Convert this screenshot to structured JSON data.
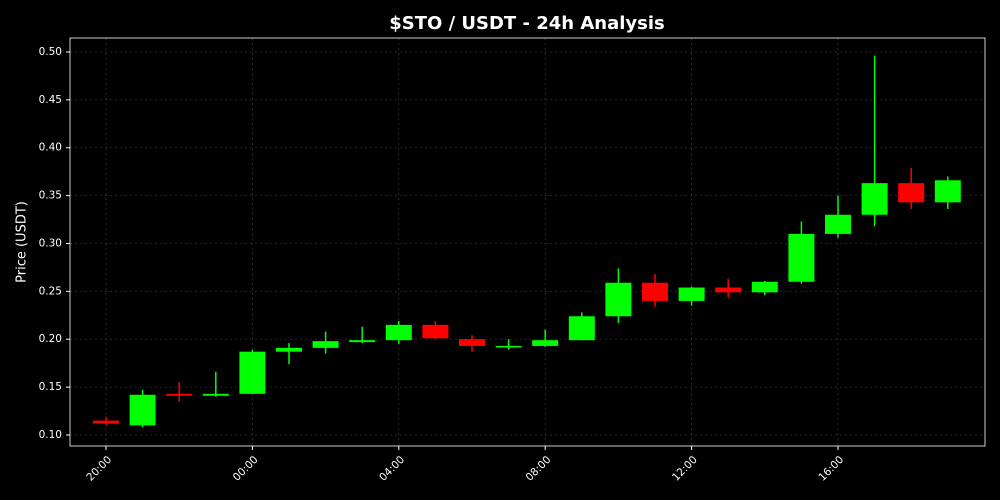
{
  "chart_data": {
    "type": "candlestick",
    "title": "$STO / USDT - 24h Analysis",
    "ylabel": "Price (USDT)",
    "categories": [
      "20:00",
      null,
      null,
      null,
      "00:00",
      null,
      null,
      null,
      "04:00",
      null,
      null,
      null,
      "08:00",
      null,
      null,
      null,
      "12:00",
      null,
      null,
      null,
      "16:00",
      null,
      null,
      null
    ],
    "open": [
      0.115,
      0.11,
      0.143,
      0.141,
      0.143,
      0.187,
      0.191,
      0.197,
      0.199,
      0.215,
      0.2,
      0.192,
      0.193,
      0.199,
      0.224,
      0.259,
      0.24,
      0.254,
      0.249,
      0.26,
      0.31,
      0.33,
      0.363,
      0.343
    ],
    "high": [
      0.119,
      0.147,
      0.155,
      0.166,
      0.189,
      0.196,
      0.208,
      0.213,
      0.219,
      0.219,
      0.204,
      0.2,
      0.21,
      0.228,
      0.274,
      0.268,
      0.255,
      0.263,
      0.261,
      0.323,
      0.35,
      0.496,
      0.379,
      0.37
    ],
    "low": [
      0.11,
      0.108,
      0.135,
      0.14,
      0.143,
      0.174,
      0.185,
      0.196,
      0.195,
      0.2,
      0.187,
      0.189,
      0.192,
      0.199,
      0.217,
      0.234,
      0.235,
      0.244,
      0.246,
      0.258,
      0.306,
      0.318,
      0.336,
      0.336
    ],
    "close": [
      0.112,
      0.142,
      0.141,
      0.143,
      0.187,
      0.191,
      0.198,
      0.199,
      0.215,
      0.201,
      0.193,
      0.193,
      0.199,
      0.224,
      0.259,
      0.24,
      0.254,
      0.249,
      0.26,
      0.31,
      0.33,
      0.363,
      0.343,
      0.366
    ],
    "up_color": "#00ff00",
    "down_color": "#ff0000",
    "ylim": [
      0.0885,
      0.5146
    ],
    "yticks": [
      {
        "value": 0.1,
        "label": "0.10"
      },
      0.15,
      {
        "value": 0.2,
        "label": "0.20"
      },
      0.25,
      {
        "value": 0.3,
        "label": "0.30"
      },
      0.35,
      {
        "value": 0.4,
        "label": "0.40"
      },
      0.45,
      {
        "value": 0.5,
        "label": "0.50"
      }
    ],
    "grid": true
  }
}
